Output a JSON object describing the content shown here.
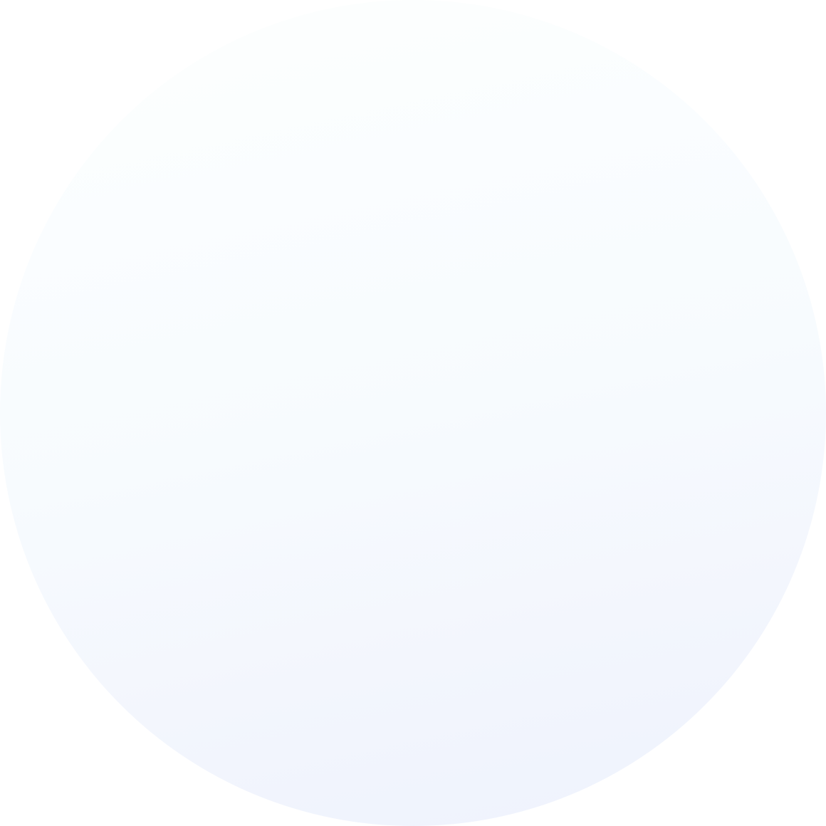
{
  "background": {
    "page_color": "#ffffff",
    "circle_gradient": [
      "#fdfffd",
      "#fafdff",
      "#f7fbfe",
      "#f3f6fd",
      "#eef2fd"
    ]
  }
}
